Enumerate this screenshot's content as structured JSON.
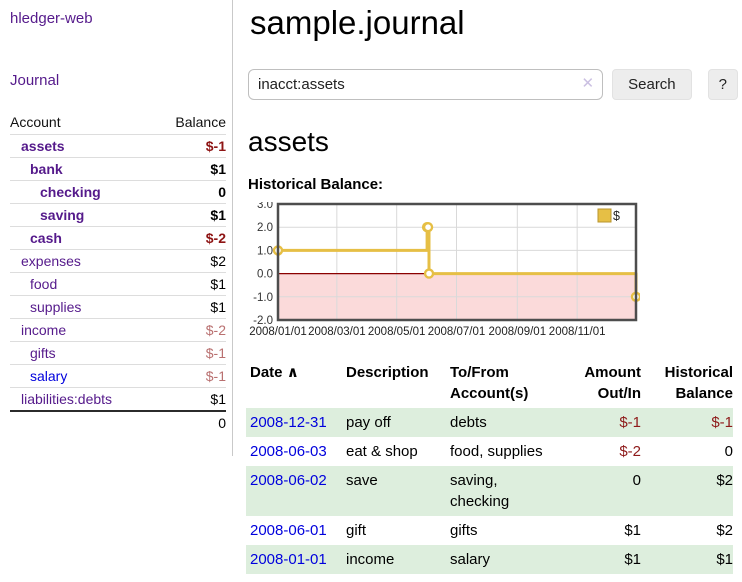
{
  "app": {
    "brand": "hledger-web",
    "nav_journal": "Journal"
  },
  "colors": {
    "link_purple": "#551a8b",
    "link_blue": "#0000dd",
    "negative_strong": "#8e1414",
    "negative_muted": "#b97070",
    "row_green": "#ddeedd",
    "chart_gold": "#e6bf45",
    "chart_negative_bg": "#fbdada"
  },
  "sidebar": {
    "header": {
      "account": "Account",
      "balance": "Balance"
    },
    "accounts": [
      {
        "name": "assets",
        "depth": 1,
        "matched": true,
        "balance": "$-1"
      },
      {
        "name": "bank",
        "depth": 2,
        "matched": true,
        "balance": "$1"
      },
      {
        "name": "checking",
        "depth": 3,
        "matched": true,
        "balance": "0"
      },
      {
        "name": "saving",
        "depth": 3,
        "matched": true,
        "balance": "$1"
      },
      {
        "name": "cash",
        "depth": 2,
        "matched": true,
        "balance": "$-2"
      },
      {
        "name": "expenses",
        "depth": 1,
        "matched": false,
        "balance": "$2"
      },
      {
        "name": "food",
        "depth": 2,
        "matched": false,
        "balance": "$1"
      },
      {
        "name": "supplies",
        "depth": 2,
        "matched": false,
        "balance": "$1"
      },
      {
        "name": "income",
        "depth": 1,
        "matched": false,
        "balance": "$-2"
      },
      {
        "name": "gifts",
        "depth": 2,
        "matched": false,
        "balance": "$-1"
      },
      {
        "name": "salary",
        "depth": 2,
        "matched": false,
        "balance": "$-1",
        "unvisited": true
      },
      {
        "name": "liabilities:debts",
        "depth": 1,
        "matched": false,
        "balance": "$1"
      }
    ],
    "total": "0"
  },
  "header": {
    "title": "sample.journal"
  },
  "search": {
    "value": "inacct:assets",
    "clear_icon": "✕",
    "search_label": "Search",
    "help_label": "?"
  },
  "account_page": {
    "title": "assets",
    "chart_title": "Historical Balance:"
  },
  "chart_data": {
    "type": "line",
    "step": true,
    "title": "Historical Balance",
    "series": [
      {
        "name": "$",
        "color": "#e6bf45",
        "points": [
          [
            "2008-01-01",
            1
          ],
          [
            "2008-06-01",
            2
          ],
          [
            "2008-06-02",
            2
          ],
          [
            "2008-06-03",
            0
          ],
          [
            "2008-12-31",
            -1
          ]
        ]
      }
    ],
    "ylim": [
      -2,
      3
    ],
    "yticks": [
      "3.0",
      "2.0",
      "1.0",
      "0.0",
      "-1.0",
      "-2.0"
    ],
    "xticks": [
      "2008/01/01",
      "2008/03/01",
      "2008/05/01",
      "2008/07/01",
      "2008/09/01",
      "2008/11/01"
    ],
    "x_domain": [
      "2008-01-01",
      "2008-12-31"
    ],
    "grid": true,
    "legend_position": "top-right",
    "negative_fill": "#fbdada",
    "zero_line_color": "#8b0000"
  },
  "register": {
    "columns": {
      "date": "Date",
      "sort_indicator": "∧",
      "description": "Description",
      "accounts": "To/From Account(s)",
      "amount": "Amount Out/In",
      "balance": "Historical Balance"
    },
    "rows": [
      {
        "date": "2008-12-31",
        "description": "pay off",
        "accounts": "debts",
        "amount": "$-1",
        "balance": "$-1"
      },
      {
        "date": "2008-06-03",
        "description": "eat & shop",
        "accounts": "food, supplies",
        "amount": "$-2",
        "balance": "0"
      },
      {
        "date": "2008-06-02",
        "description": "save",
        "accounts": "saving, checking",
        "amount": "0",
        "balance": "$2"
      },
      {
        "date": "2008-06-01",
        "description": "gift",
        "accounts": "gifts",
        "amount": "$1",
        "balance": "$2"
      },
      {
        "date": "2008-01-01",
        "description": "income",
        "accounts": "salary",
        "amount": "$1",
        "balance": "$1"
      }
    ]
  }
}
